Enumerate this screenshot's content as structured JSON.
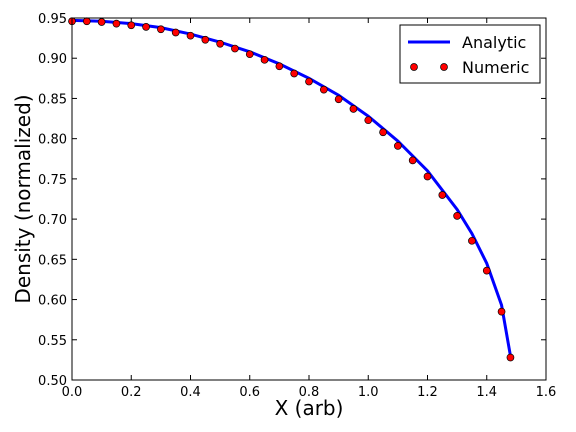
{
  "chart_data": {
    "type": "line",
    "xlabel": "X (arb)",
    "ylabel": "Density (normalized)",
    "xlim": [
      0.0,
      1.6
    ],
    "xticks": [
      {
        "value": 0,
        "label": "0.0"
      },
      0.2,
      0.4,
      0.6,
      0.8,
      {
        "value": 1,
        "label": "1.0"
      },
      1.2,
      1.4,
      1.6
    ],
    "ylim": [
      0.5,
      0.95
    ],
    "yticks": [
      {
        "value": 0.5,
        "label": "0.50"
      },
      0.55,
      {
        "value": 0.6,
        "label": "0.60"
      },
      0.65,
      {
        "value": 0.7,
        "label": "0.70"
      },
      0.75,
      {
        "value": 0.8,
        "label": "0.80"
      },
      0.85,
      {
        "value": 0.9,
        "label": "0.90"
      },
      0.95
    ],
    "legend": "upper right",
    "series": [
      {
        "name": "Analytic",
        "color": "#0000ff",
        "style": "line",
        "x": [
          0,
          0.1,
          0.2,
          0.3,
          0.4,
          0.5,
          0.6,
          0.7,
          0.8,
          0.9,
          1.0,
          1.1,
          1.2,
          1.3,
          1.35,
          1.4,
          1.45,
          1.48
        ],
        "values": [
          0.947,
          0.946,
          0.943,
          0.938,
          0.93,
          0.92,
          0.908,
          0.893,
          0.875,
          0.854,
          0.828,
          0.797,
          0.76,
          0.712,
          0.682,
          0.645,
          0.593,
          0.53
        ]
      },
      {
        "name": "Numeric",
        "color": "#ff0000",
        "style": "marker",
        "x": [
          0,
          0.05,
          0.1,
          0.15,
          0.2,
          0.25,
          0.3,
          0.35,
          0.4,
          0.45,
          0.5,
          0.55,
          0.6,
          0.65,
          0.7,
          0.75,
          0.8,
          0.85,
          0.9,
          0.95,
          1.0,
          1.05,
          1.1,
          1.15,
          1.2,
          1.25,
          1.3,
          1.35,
          1.4,
          1.45,
          1.48
        ],
        "values": [
          0.946,
          0.946,
          0.945,
          0.943,
          0.941,
          0.939,
          0.936,
          0.932,
          0.928,
          0.923,
          0.918,
          0.912,
          0.905,
          0.898,
          0.89,
          0.881,
          0.871,
          0.861,
          0.849,
          0.837,
          0.823,
          0.808,
          0.791,
          0.773,
          0.753,
          0.73,
          0.704,
          0.673,
          0.636,
          0.585,
          0.528
        ]
      }
    ]
  }
}
